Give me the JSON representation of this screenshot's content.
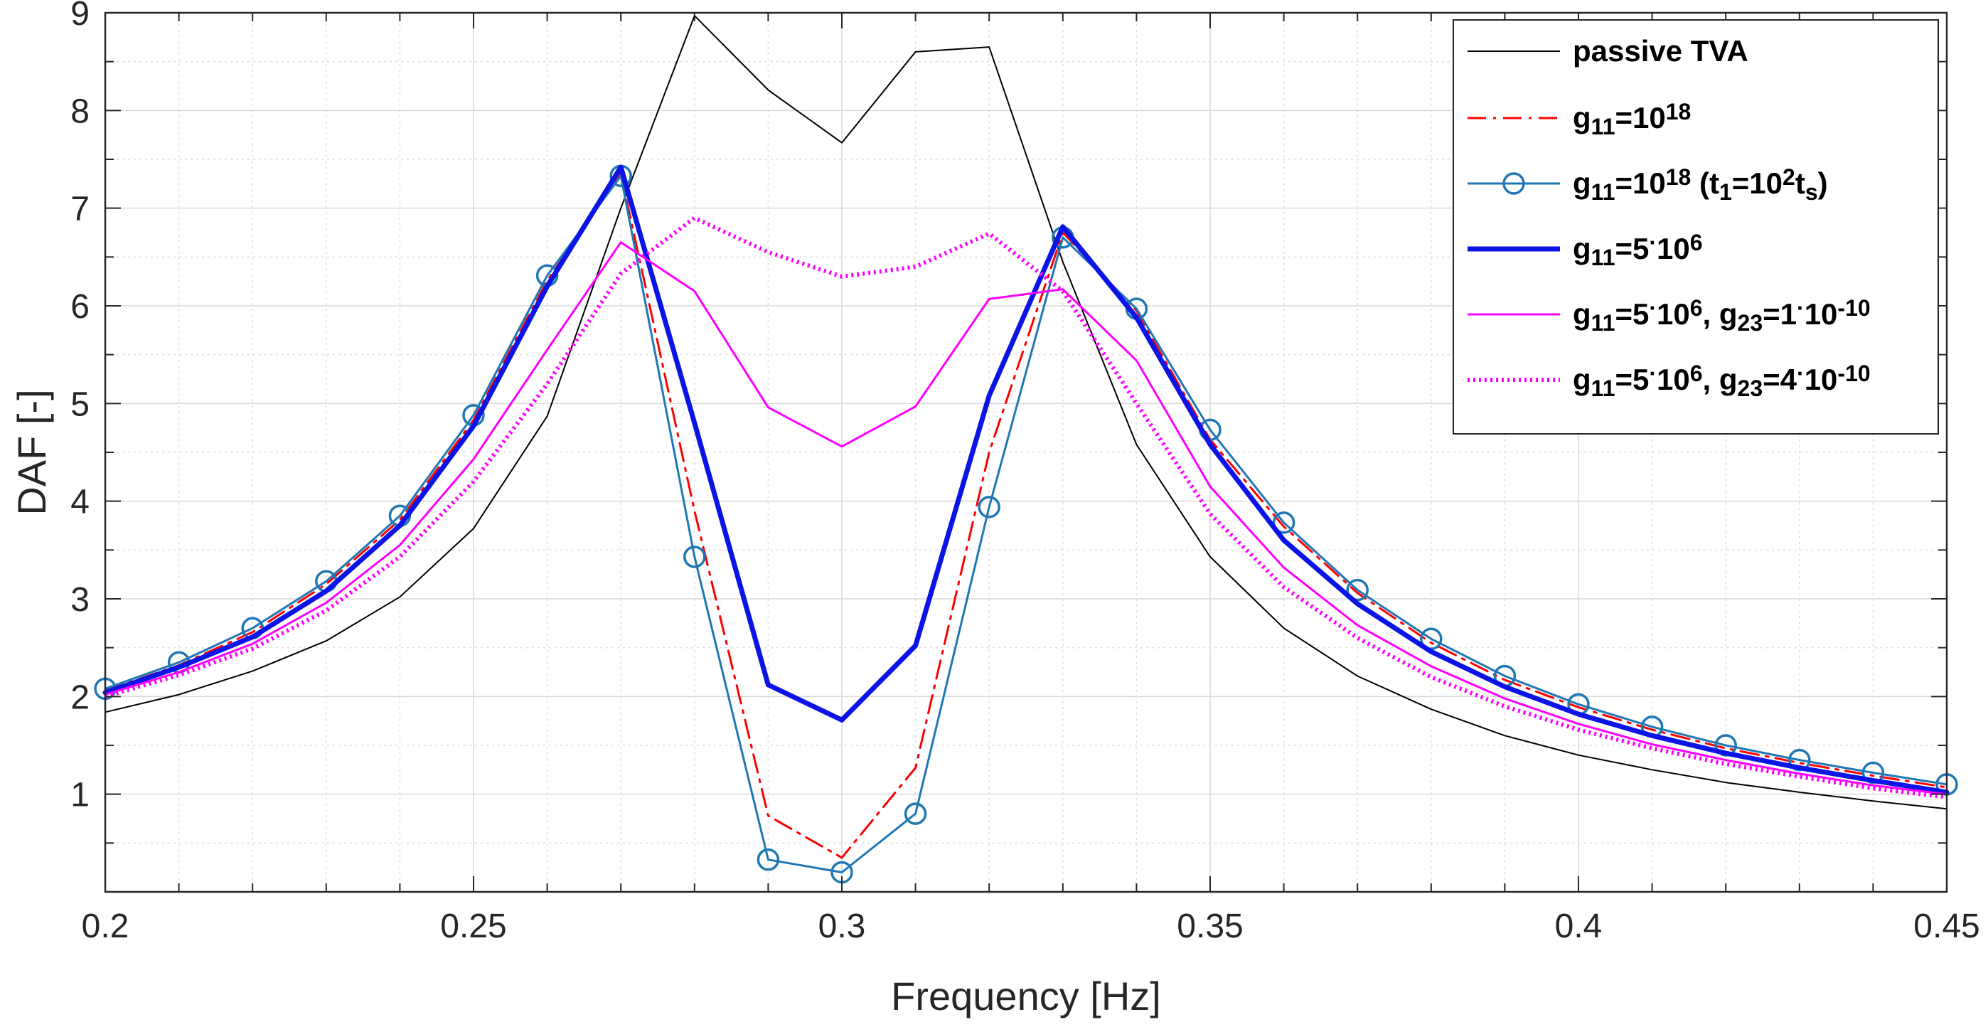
{
  "chart_data": {
    "type": "line",
    "xlabel": "Frequency [Hz]",
    "ylabel": "DAF [-]",
    "xlim": [
      0.2,
      0.45
    ],
    "ylim": [
      0,
      9
    ],
    "xticks": [
      0.2,
      0.25,
      0.3,
      0.35,
      0.4,
      0.45
    ],
    "xtick_labels": [
      "0.2",
      "0.25",
      "0.3",
      "0.35",
      "0.4",
      "0.45"
    ],
    "yticks": [
      1,
      2,
      3,
      4,
      5,
      6,
      7,
      8,
      9
    ],
    "ytick_labels": [
      "1",
      "2",
      "3",
      "4",
      "5",
      "6",
      "7",
      "8",
      "9"
    ],
    "grid": true,
    "legend_position": "top-right",
    "x": [
      0.2,
      0.21,
      0.22,
      0.23,
      0.24,
      0.25,
      0.26,
      0.27,
      0.28,
      0.29,
      0.3,
      0.31,
      0.32,
      0.33,
      0.34,
      0.35,
      0.36,
      0.37,
      0.38,
      0.39,
      0.4,
      0.41,
      0.42,
      0.43,
      0.44,
      0.45
    ],
    "series": [
      {
        "name": "passive TVA",
        "legend_parts": [
          [
            "passive TVA",
            "n"
          ]
        ],
        "color": "#000000",
        "style": "solid",
        "width": 2,
        "marker": "none",
        "values": [
          1.84,
          2.02,
          2.26,
          2.57,
          3.02,
          3.72,
          4.87,
          7.0,
          8.97,
          8.21,
          7.67,
          8.6,
          8.65,
          6.45,
          4.58,
          3.43,
          2.7,
          2.21,
          1.87,
          1.6,
          1.4,
          1.25,
          1.12,
          1.02,
          0.93,
          0.85
        ]
      },
      {
        "name": "g11=10^18",
        "legend_parts": [
          [
            "g",
            "n"
          ],
          [
            "11",
            "sub"
          ],
          [
            "=10",
            "n"
          ],
          [
            "18",
            "sup"
          ]
        ],
        "color": "#ff0000",
        "style": "dashdot",
        "width": 3,
        "marker": "none",
        "values": [
          2.06,
          2.32,
          2.66,
          3.15,
          3.81,
          4.83,
          6.26,
          7.35,
          3.9,
          0.78,
          0.35,
          1.27,
          4.5,
          6.75,
          5.95,
          4.63,
          3.74,
          3.06,
          2.55,
          2.17,
          1.89,
          1.66,
          1.47,
          1.32,
          1.19,
          1.07
        ]
      },
      {
        "name": "g11=10^18 (t1=10^2 ts)",
        "legend_parts": [
          [
            "g",
            "n"
          ],
          [
            "11",
            "sub"
          ],
          [
            "=10",
            "n"
          ],
          [
            "18",
            "sup"
          ],
          [
            " (t",
            "n"
          ],
          [
            "1",
            "sub"
          ],
          [
            "=10",
            "n"
          ],
          [
            "2",
            "sup"
          ],
          [
            "t",
            "n"
          ],
          [
            "s",
            "sub"
          ],
          [
            ")",
            "n"
          ]
        ],
        "color": "#1f77b4",
        "style": "solid",
        "width": 3,
        "marker": "circle",
        "values": [
          2.08,
          2.35,
          2.7,
          3.18,
          3.85,
          4.88,
          6.31,
          7.33,
          3.43,
          0.33,
          0.2,
          0.8,
          3.94,
          6.7,
          5.97,
          4.73,
          3.78,
          3.09,
          2.59,
          2.21,
          1.92,
          1.69,
          1.5,
          1.35,
          1.22,
          1.1
        ]
      },
      {
        "name": "g11=5·10^6",
        "legend_parts": [
          [
            "g",
            "n"
          ],
          [
            "11",
            "sub"
          ],
          [
            "=5",
            "n"
          ],
          [
            "·",
            "sup"
          ],
          [
            "10",
            "n"
          ],
          [
            "6",
            "sup"
          ]
        ],
        "color": "#0a14e6",
        "style": "solid",
        "width": 7,
        "marker": "none",
        "values": [
          2.04,
          2.3,
          2.61,
          3.08,
          3.75,
          4.77,
          6.2,
          7.42,
          4.8,
          2.12,
          1.76,
          2.52,
          5.08,
          6.81,
          5.88,
          4.58,
          3.6,
          2.95,
          2.46,
          2.1,
          1.82,
          1.6,
          1.42,
          1.27,
          1.14,
          1.02
        ]
      },
      {
        "name": "g11=5·10^6, g23=1·10^-10",
        "legend_parts": [
          [
            "g",
            "n"
          ],
          [
            "11",
            "sub"
          ],
          [
            "=5",
            "n"
          ],
          [
            "·",
            "sup"
          ],
          [
            "10",
            "n"
          ],
          [
            "6",
            "sup"
          ],
          [
            ", g",
            "n"
          ],
          [
            "23",
            "sub"
          ],
          [
            "=1",
            "n"
          ],
          [
            "·",
            "sup"
          ],
          [
            "10",
            "n"
          ],
          [
            "-10",
            "sup"
          ]
        ],
        "color": "#ff00ff",
        "style": "solid",
        "width": 3,
        "marker": "none",
        "values": [
          2.02,
          2.25,
          2.54,
          2.96,
          3.55,
          4.43,
          5.55,
          6.65,
          6.15,
          4.96,
          4.56,
          4.97,
          6.07,
          6.17,
          5.44,
          4.15,
          3.32,
          2.73,
          2.31,
          1.98,
          1.72,
          1.51,
          1.35,
          1.21,
          1.09,
          1.0
        ]
      },
      {
        "name": "g11=5·10^6, g23=4·10^-10",
        "legend_parts": [
          [
            "g",
            "n"
          ],
          [
            "11",
            "sub"
          ],
          [
            "=5",
            "n"
          ],
          [
            "·",
            "sup"
          ],
          [
            "10",
            "n"
          ],
          [
            "6",
            "sup"
          ],
          [
            ", g",
            "n"
          ],
          [
            "23",
            "sub"
          ],
          [
            "=4",
            "n"
          ],
          [
            "·",
            "sup"
          ],
          [
            "10",
            "n"
          ],
          [
            "-10",
            "sup"
          ]
        ],
        "color": "#ff00ff",
        "style": "dotted",
        "width": 6,
        "marker": "none",
        "values": [
          2.0,
          2.22,
          2.49,
          2.88,
          3.43,
          4.2,
          5.2,
          6.33,
          6.9,
          6.55,
          6.3,
          6.4,
          6.74,
          6.15,
          5.0,
          3.87,
          3.12,
          2.6,
          2.2,
          1.9,
          1.66,
          1.47,
          1.31,
          1.18,
          1.06,
          0.97
        ]
      }
    ]
  }
}
